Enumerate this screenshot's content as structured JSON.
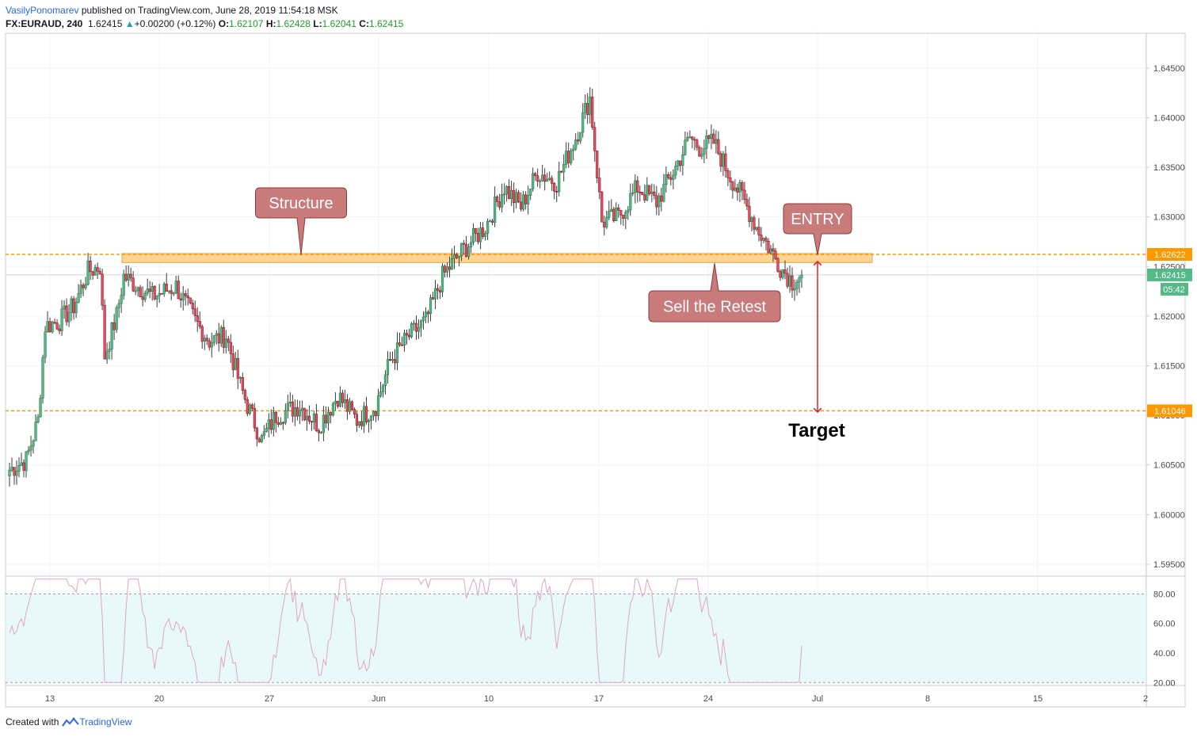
{
  "header": {
    "author": "VasilyPonomarev",
    "published": " published on TradingView.com, June 28, 2019 11:54:18 MSK",
    "symbol": "FX:EURAUD, 240",
    "last": "1.62415",
    "change": "+0.00200 (+0.12%)",
    "o_label": "O:",
    "o_val": "1.62107",
    "h_label": "H:",
    "h_val": "1.62428",
    "l_label": "L:",
    "l_val": "1.62041",
    "c_label": "C:",
    "c_val": "1.62415"
  },
  "footer": {
    "created": "Created with",
    "brand": "TradingView"
  },
  "chart_data": {
    "type": "candlestick",
    "symbol": "FX:EURAUD",
    "timeframe": "240",
    "x_ticks": [
      "13",
      "20",
      "27",
      "Jun",
      "10",
      "17",
      "24",
      "Jul",
      "8",
      "15",
      "2"
    ],
    "price_ticks": [
      "1.64500",
      "1.64000",
      "1.63500",
      "1.63000",
      "1.62500",
      "1.62000",
      "1.61500",
      "1.61000",
      "1.60500",
      "1.60000",
      "1.59500"
    ],
    "ylim": [
      1.5938,
      1.6485
    ],
    "current_price": "1.62415",
    "countdown": "05:42",
    "levels": [
      {
        "label": "1.62622",
        "value": 1.62622,
        "color": "#ff9800",
        "style": "dashed"
      },
      {
        "label": "1.61046",
        "value": 1.61046,
        "color": "#ff9800",
        "style": "dashed"
      }
    ],
    "zone": {
      "from": 1.6254,
      "to": 1.6263,
      "color": "#ffcc80"
    },
    "annotations": [
      {
        "text": "Structure",
        "kind": "callout"
      },
      {
        "text": "Sell the Retest",
        "kind": "callout"
      },
      {
        "text": "ENTRY",
        "kind": "callout"
      },
      {
        "text": "Target",
        "kind": "label"
      }
    ],
    "price_path": [
      [
        0,
        1.6045
      ],
      [
        7,
        1.6055
      ],
      [
        12,
        1.6095
      ],
      [
        15,
        1.619
      ],
      [
        21,
        1.6195
      ],
      [
        27,
        1.621
      ],
      [
        33,
        1.6245
      ],
      [
        38,
        1.625
      ],
      [
        40,
        1.616
      ],
      [
        45,
        1.62
      ],
      [
        48,
        1.624
      ],
      [
        60,
        1.622
      ],
      [
        70,
        1.623
      ],
      [
        78,
        1.6195
      ],
      [
        84,
        1.6175
      ],
      [
        91,
        1.618
      ],
      [
        97,
        1.613
      ],
      [
        100,
        1.611
      ],
      [
        106,
        1.6075
      ],
      [
        112,
        1.61
      ],
      [
        122,
        1.611
      ],
      [
        130,
        1.609
      ],
      [
        138,
        1.612
      ],
      [
        146,
        1.6095
      ],
      [
        154,
        1.611
      ],
      [
        160,
        1.6155
      ],
      [
        168,
        1.618
      ],
      [
        175,
        1.6195
      ],
      [
        182,
        1.624
      ],
      [
        190,
        1.6265
      ],
      [
        200,
        1.629
      ],
      [
        208,
        1.633
      ],
      [
        215,
        1.631
      ],
      [
        222,
        1.6345
      ],
      [
        230,
        1.6335
      ],
      [
        238,
        1.638
      ],
      [
        244,
        1.642
      ],
      [
        249,
        1.6295
      ],
      [
        256,
        1.63
      ],
      [
        264,
        1.633
      ],
      [
        272,
        1.6315
      ],
      [
        280,
        1.635
      ],
      [
        286,
        1.638
      ],
      [
        290,
        1.637
      ],
      [
        296,
        1.6375
      ],
      [
        302,
        1.6345
      ],
      [
        308,
        1.632
      ],
      [
        314,
        1.629
      ],
      [
        319,
        1.627
      ],
      [
        324,
        1.625
      ],
      [
        329,
        1.6235
      ],
      [
        333,
        1.6242
      ]
    ],
    "oscillator": {
      "levels": [
        {
          "label": "80.00",
          "value": 80,
          "style": "dashed"
        },
        {
          "label": "20.00",
          "value": 20,
          "style": "dashed"
        }
      ],
      "ticks": [
        "80.00",
        "60.00",
        "40.00",
        "20.00"
      ],
      "ylim": [
        18,
        92
      ],
      "band_color": "#e0f7fa",
      "line_color": "#e0a3c8"
    }
  }
}
